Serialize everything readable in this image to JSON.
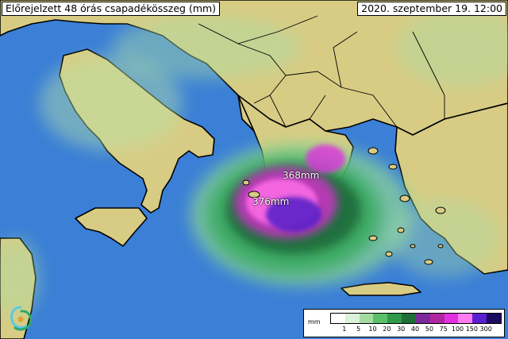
{
  "title": "Előrejelzett 48 órás csapadékösszeg (mm)",
  "datetime": "2020. szeptember 19. 12:00",
  "labels": [
    {
      "id": "max1",
      "text": "368mm"
    },
    {
      "id": "max2",
      "text": "376mm"
    }
  ],
  "legend": {
    "unit": "mm",
    "ticks": [
      "1",
      "5",
      "10",
      "20",
      "30",
      "40",
      "50",
      "75",
      "100",
      "150",
      "300"
    ],
    "colors": [
      "#ffffff",
      "#d9f2d9",
      "#a3dca3",
      "#5cbf6a",
      "#2e9a4a",
      "#1f6f38",
      "#7a2a9a",
      "#b0279f",
      "#e030e0",
      "#ff7cf0",
      "#5a1fd0",
      "#1a0a60"
    ]
  },
  "colors": {
    "sea": "#3b7fd6",
    "land": "#d8cc84",
    "peak": "#5b20c8"
  }
}
